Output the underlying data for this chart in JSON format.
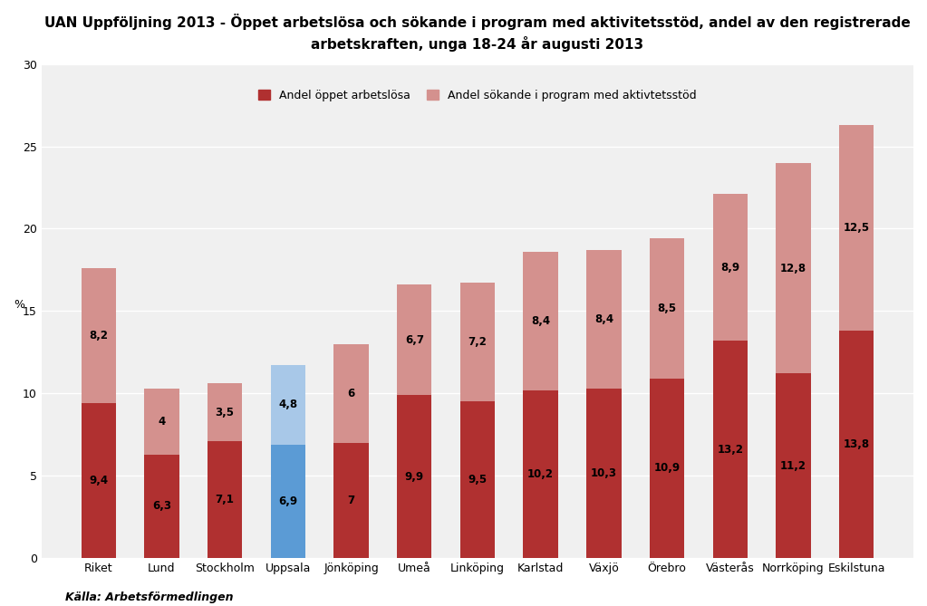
{
  "title": "UAN Uppföljning 2013 - Öppet arbetslösa och sökande i program med aktivitetsstöd, andel av den registrerade\narbetskraften, unga 18-24 år augusti 2013",
  "categories": [
    "Riket",
    "Lund",
    "Stockholm",
    "Uppsala",
    "Jönköping",
    "Umeå",
    "Linköping",
    "Karlstad",
    "Växjö",
    "Örebro",
    "Västerås",
    "Norrköping",
    "Eskilstuna"
  ],
  "open_unemployed": [
    9.4,
    6.3,
    7.1,
    6.9,
    7.0,
    9.9,
    9.5,
    10.2,
    10.3,
    10.9,
    13.2,
    11.2,
    13.8
  ],
  "program": [
    8.2,
    4.0,
    3.5,
    4.8,
    6.0,
    6.7,
    7.2,
    8.4,
    8.4,
    8.5,
    8.9,
    12.8,
    12.5
  ],
  "open_unemployed_labels": [
    "9,4",
    "6,3",
    "7,1",
    "6,9",
    "7",
    "9,9",
    "9,5",
    "10,2",
    "10,3",
    "10,9",
    "13,2",
    "11,2",
    "13,8"
  ],
  "program_labels": [
    "8,2",
    "4",
    "3,5",
    "4,8",
    "6",
    "6,7",
    "7,2",
    "8,4",
    "8,4",
    "8,5",
    "8,9",
    "12,8",
    "12,5"
  ],
  "bar_color_open": "#b03030",
  "bar_color_open_uppsala": "#5b9bd5",
  "bar_color_program": "#d4918e",
  "bar_color_program_uppsala": "#a8c8e8",
  "highlight_index": 3,
  "ylabel": "%",
  "ylim": [
    0,
    30
  ],
  "yticks": [
    0,
    5,
    10,
    15,
    20,
    25,
    30
  ],
  "legend_label_open": "Andel öppet arbetslösa",
  "legend_label_program": "Andel sökande i program med aktivtetsstöd",
  "source_text": "Källa: Arbetsförmedlingen",
  "title_fontsize": 11,
  "label_fontsize": 8.5,
  "tick_fontsize": 9,
  "legend_fontsize": 9,
  "source_fontsize": 9,
  "plot_bg_color": "#f0f0f0",
  "fig_bg_color": "#ffffff",
  "grid_color": "#ffffff",
  "bar_width": 0.55
}
